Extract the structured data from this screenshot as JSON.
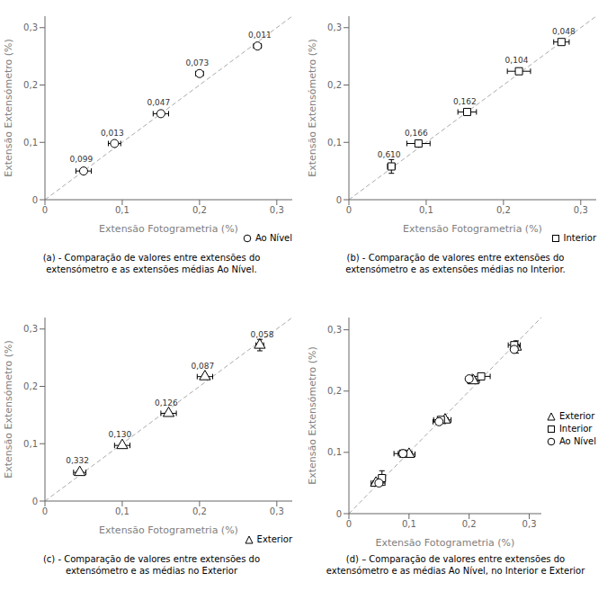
{
  "chart_data": [
    {
      "type": "scatter",
      "caption": "(a)   - Comparação de valores entre extensões do\nextensómetro e as extensões médias Ao Nível.",
      "x_label": "Extensão Fotogrametria (%)",
      "y_label": "Extensão Extensómetro (%)",
      "xlim": [
        0,
        0.32
      ],
      "ylim": [
        0,
        0.32
      ],
      "xticks": [
        0,
        {
          "value": 0.1,
          "label": "0,1"
        },
        {
          "value": 0.2,
          "label": "0,2"
        },
        {
          "value": 0.3,
          "label": "0,3"
        }
      ],
      "yticks": [
        0,
        {
          "value": 0.1,
          "label": "0,1"
        },
        {
          "value": 0.2,
          "label": "0,2"
        },
        {
          "value": 0.3,
          "label": "0,3"
        }
      ],
      "grid": false,
      "legend": "lower right",
      "reference_line": {
        "x": [
          0,
          0.32
        ],
        "y": [
          0,
          0.32
        ],
        "color": "#aaaaaa",
        "line_style": "dashed"
      },
      "series": [
        {
          "name": "Ao Nível",
          "marker": "circle",
          "color": "black",
          "x": [
            0.05,
            0.09,
            0.15,
            0.2,
            0.275
          ],
          "y": [
            0.05,
            0.098,
            0.15,
            0.22,
            0.268
          ],
          "xerr": [
            0.01,
            0.008,
            0.01,
            0.005,
            0.005
          ],
          "yerr": [
            0.0,
            0.003,
            0.003,
            0.003,
            0.003
          ]
        }
      ],
      "annotations": [
        {
          "text": "0,099",
          "x": 0.047,
          "y": 0.066
        },
        {
          "text": "0,013",
          "x": 0.087,
          "y": 0.112
        },
        {
          "text": "0,047",
          "x": 0.147,
          "y": 0.164
        },
        {
          "text": "0,073",
          "x": 0.197,
          "y": 0.234
        },
        {
          "text": "0,011",
          "x": 0.278,
          "y": 0.282
        }
      ]
    },
    {
      "type": "scatter",
      "caption": "(b)   - Comparação de valores entre extensões do\nextensómetro e as extensões médias no Interior.",
      "x_label": "Extensão Fotogrametria (%)",
      "y_label": "Extensão Extensómetro (%)",
      "xlim": [
        0,
        0.32
      ],
      "ylim": [
        0,
        0.32
      ],
      "xticks": [
        0,
        {
          "value": 0.1,
          "label": "0,1"
        },
        {
          "value": 0.2,
          "label": "0,2"
        },
        {
          "value": 0.3,
          "label": "0,3"
        }
      ],
      "yticks": [
        0,
        {
          "value": 0.1,
          "label": "0,1"
        },
        {
          "value": 0.2,
          "label": "0,2"
        },
        {
          "value": 0.3,
          "label": "0,3"
        }
      ],
      "grid": false,
      "legend": "lower right",
      "reference_line": {
        "x": [
          0,
          0.32
        ],
        "y": [
          0,
          0.32
        ],
        "color": "#aaaaaa",
        "line_style": "dashed"
      },
      "series": [
        {
          "name": "Interior",
          "marker": "square",
          "color": "black",
          "x": [
            0.055,
            0.09,
            0.153,
            0.22,
            0.275
          ],
          "y": [
            0.058,
            0.098,
            0.153,
            0.224,
            0.275
          ],
          "xerr": [
            0.005,
            0.015,
            0.012,
            0.015,
            0.01
          ],
          "yerr": [
            0.012,
            0.003,
            0.004,
            0.003,
            0.004
          ]
        }
      ],
      "annotations": [
        {
          "text": "0,610",
          "x": 0.052,
          "y": 0.074
        },
        {
          "text": "0,166",
          "x": 0.087,
          "y": 0.112
        },
        {
          "text": "0,162",
          "x": 0.15,
          "y": 0.167
        },
        {
          "text": "0,104",
          "x": 0.217,
          "y": 0.238
        },
        {
          "text": "0,048",
          "x": 0.278,
          "y": 0.289
        }
      ]
    },
    {
      "type": "scatter",
      "caption": "(c) - Comparação de valores entre extensões do\nextensómetro e as médias no Exterior",
      "x_label": "Extensão Fotogrametria (%)",
      "y_label": "Extensão Extensómetro (%)",
      "xlim": [
        0,
        0.32
      ],
      "ylim": [
        0,
        0.32
      ],
      "xticks": [
        0,
        {
          "value": 0.1,
          "label": "0,1"
        },
        {
          "value": 0.2,
          "label": "0,2"
        },
        {
          "value": 0.3,
          "label": "0,3"
        }
      ],
      "yticks": [
        0,
        {
          "value": 0.1,
          "label": "0,1"
        },
        {
          "value": 0.2,
          "label": "0,2"
        },
        {
          "value": 0.3,
          "label": "0,3"
        }
      ],
      "grid": false,
      "legend": "lower right",
      "reference_line": {
        "x": [
          0,
          0.32
        ],
        "y": [
          0,
          0.32
        ],
        "color": "#aaaaaa",
        "line_style": "dashed"
      },
      "series": [
        {
          "name": "Exterior",
          "marker": "triangle",
          "color": "black",
          "x": [
            0.045,
            0.1,
            0.16,
            0.207,
            0.278
          ],
          "y": [
            0.05,
            0.097,
            0.153,
            0.217,
            0.272
          ],
          "xerr": [
            0.008,
            0.01,
            0.01,
            0.01,
            0.005
          ],
          "yerr": [
            0.003,
            0.004,
            0.003,
            0.004,
            0.01
          ]
        }
      ],
      "annotations": [
        {
          "text": "0,332",
          "x": 0.042,
          "y": 0.066
        },
        {
          "text": "0,130",
          "x": 0.097,
          "y": 0.111
        },
        {
          "text": "0,126",
          "x": 0.157,
          "y": 0.167
        },
        {
          "text": "0,087",
          "x": 0.204,
          "y": 0.231
        },
        {
          "text": "0,058",
          "x": 0.281,
          "y": 0.286
        }
      ]
    },
    {
      "type": "scatter",
      "caption": "(d) – Comparação de valores entre extensões do\nextensómetro e as médias Ao Nível, no Interior e Exterior",
      "x_label": "Extensão Fotogrametria (%)",
      "y_label": "Extensão Extensómetro (%)",
      "xlim": [
        0,
        0.32
      ],
      "ylim": [
        0,
        0.32
      ],
      "xticks": [
        0,
        {
          "value": 0.1,
          "label": "0,1"
        },
        {
          "value": 0.2,
          "label": "0,2"
        },
        {
          "value": 0.3,
          "label": "0,3"
        }
      ],
      "yticks": [
        0,
        {
          "value": 0.1,
          "label": "0,1"
        },
        {
          "value": 0.2,
          "label": "0,2"
        },
        {
          "value": 0.3,
          "label": "0,3"
        }
      ],
      "grid": false,
      "legend": "right",
      "reference_line": {
        "x": [
          0,
          0.32
        ],
        "y": [
          0,
          0.32
        ],
        "color": "#aaaaaa",
        "line_style": "dashed"
      },
      "series": [
        {
          "name": "Exterior",
          "marker": "triangle",
          "color": "black",
          "x": [
            0.045,
            0.1,
            0.16,
            0.207,
            0.278
          ],
          "y": [
            0.05,
            0.097,
            0.153,
            0.217,
            0.272
          ],
          "xerr": [
            0.008,
            0.01,
            0.01,
            0.01,
            0.005
          ],
          "yerr": [
            0.003,
            0.004,
            0.003,
            0.004,
            0.01
          ]
        },
        {
          "name": "Interior",
          "marker": "square",
          "color": "black",
          "x": [
            0.055,
            0.09,
            0.153,
            0.22,
            0.275
          ],
          "y": [
            0.058,
            0.098,
            0.153,
            0.224,
            0.275
          ],
          "xerr": [
            0.005,
            0.015,
            0.012,
            0.015,
            0.01
          ],
          "yerr": [
            0.012,
            0.003,
            0.004,
            0.003,
            0.004
          ]
        },
        {
          "name": "Ao Nível",
          "marker": "circle",
          "color": "black",
          "x": [
            0.05,
            0.09,
            0.15,
            0.2,
            0.275
          ],
          "y": [
            0.05,
            0.098,
            0.15,
            0.22,
            0.268
          ],
          "xerr": [
            0.01,
            0.008,
            0.01,
            0.005,
            0.005
          ],
          "yerr": [
            0.0,
            0.003,
            0.003,
            0.003,
            0.003
          ]
        }
      ],
      "annotations": []
    }
  ]
}
